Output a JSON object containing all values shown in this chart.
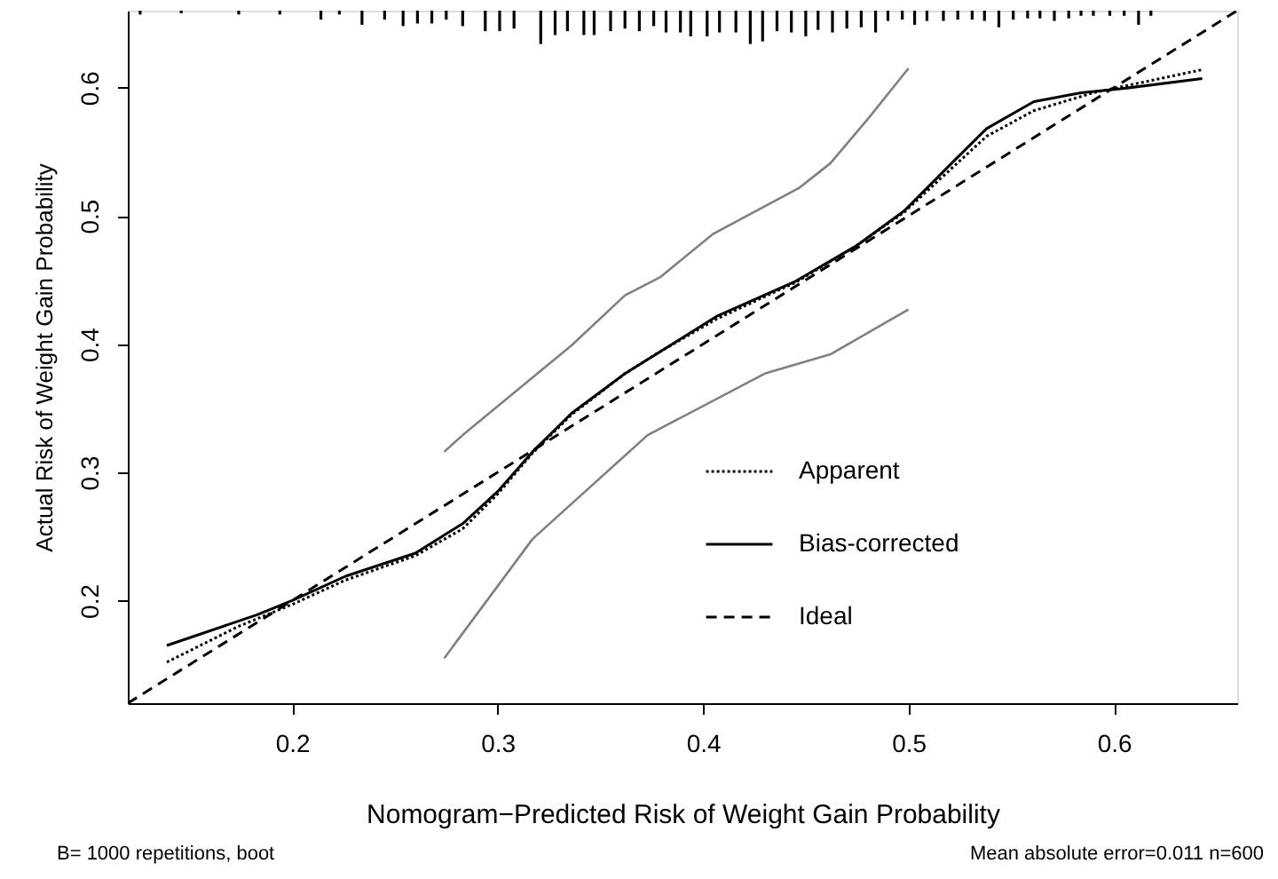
{
  "chart_data": {
    "type": "line",
    "xlabel": "Nomogram−Predicted Risk of Weight Gain Probability",
    "ylabel": "Actual Risk of Weight Gain Probability",
    "xlim": [
      0.12,
      0.66
    ],
    "ylim": [
      0.12,
      0.66
    ],
    "xticks": [
      0.2,
      0.3,
      0.4,
      0.5,
      0.6
    ],
    "yticks": [
      0.2,
      0.3,
      0.4,
      0.5,
      0.6
    ],
    "legend": "bottom right",
    "annotations": [
      "B= 1000 repetitions, boot",
      "Mean absolute error=0.011 n=600"
    ],
    "series": [
      {
        "name": "Apparent",
        "color": "#000000",
        "line_style": "dotted",
        "x": [
          0.139,
          0.174,
          0.2,
          0.226,
          0.26,
          0.283,
          0.3,
          0.317,
          0.336,
          0.362,
          0.379,
          0.407,
          0.445,
          0.475,
          0.498,
          0.521,
          0.538,
          0.561,
          0.59,
          0.643
        ],
        "values": [
          0.152,
          0.18,
          0.197,
          0.216,
          0.235,
          0.256,
          0.283,
          0.315,
          0.345,
          0.377,
          0.394,
          0.42,
          0.448,
          0.477,
          0.503,
          0.537,
          0.562,
          0.582,
          0.596,
          0.614
        ]
      },
      {
        "name": "Bias-corrected",
        "color": "#000000",
        "line_style": "solid",
        "x": [
          0.139,
          0.183,
          0.2,
          0.226,
          0.26,
          0.283,
          0.3,
          0.317,
          0.336,
          0.362,
          0.379,
          0.407,
          0.445,
          0.475,
          0.498,
          0.521,
          0.538,
          0.561,
          0.584,
          0.603,
          0.643
        ],
        "values": [
          0.165,
          0.189,
          0.2,
          0.219,
          0.237,
          0.26,
          0.285,
          0.316,
          0.346,
          0.377,
          0.394,
          0.422,
          0.449,
          0.477,
          0.504,
          0.541,
          0.568,
          0.589,
          0.596,
          0.599,
          0.607
        ]
      },
      {
        "name": "Ideal",
        "color": "#000000",
        "line_style": "dashed",
        "x": [
          0.12,
          0.66
        ],
        "values": [
          0.12,
          0.66
        ]
      },
      {
        "color": "#808080",
        "line_style": "solid",
        "x": [
          0.274,
          0.283,
          0.336,
          0.362,
          0.379,
          0.405,
          0.447,
          0.462,
          0.481,
          0.5
        ],
        "values": [
          0.316,
          0.329,
          0.399,
          0.438,
          0.452,
          0.486,
          0.522,
          0.541,
          0.577,
          0.615
        ]
      },
      {
        "color": "#808080",
        "line_style": "solid",
        "x": [
          0.274,
          0.317,
          0.373,
          0.43,
          0.462,
          0.5
        ],
        "values": [
          0.155,
          0.248,
          0.329,
          0.377,
          0.392,
          0.427
        ]
      },
      {
        "type": "bar",
        "color": "#000000",
        "base": [
          0.66,
          0.66,
          0.66,
          0.66,
          0.66,
          0.66,
          0.66,
          0.66,
          0.66,
          0.66,
          0.66,
          0.66,
          0.66,
          0.66,
          0.66,
          0.66,
          0.66,
          0.66,
          0.66,
          0.66,
          0.66,
          0.66,
          0.66,
          0.66,
          0.66,
          0.66,
          0.66,
          0.66,
          0.66,
          0.66,
          0.66,
          0.66,
          0.66,
          0.66,
          0.66,
          0.66,
          0.66,
          0.66,
          0.66,
          0.66,
          0.66,
          0.66,
          0.66,
          0.66,
          0.66,
          0.66,
          0.66,
          0.66,
          0.66,
          0.66,
          0.66,
          0.66,
          0.66,
          0.66,
          0.66,
          0.66,
          0.66,
          0.66,
          0.66,
          0.66,
          0.66
        ],
        "x": [
          0.126,
          0.146,
          0.174,
          0.194,
          0.214,
          0.223,
          0.234,
          0.245,
          0.254,
          0.261,
          0.268,
          0.275,
          0.283,
          0.294,
          0.301,
          0.308,
          0.321,
          0.328,
          0.334,
          0.342,
          0.347,
          0.355,
          0.362,
          0.369,
          0.376,
          0.382,
          0.389,
          0.394,
          0.402,
          0.408,
          0.416,
          0.423,
          0.429,
          0.436,
          0.443,
          0.45,
          0.456,
          0.463,
          0.47,
          0.477,
          0.484,
          0.49,
          0.497,
          0.503,
          0.509,
          0.517,
          0.524,
          0.531,
          0.537,
          0.544,
          0.551,
          0.558,
          0.564,
          0.571,
          0.578,
          0.584,
          0.59,
          0.598,
          0.605,
          0.612,
          0.618
        ],
        "values": [
          -0.003,
          -0.002,
          -0.003,
          -0.003,
          -0.007,
          -0.003,
          -0.011,
          -0.007,
          -0.012,
          -0.01,
          -0.01,
          -0.007,
          -0.012,
          -0.016,
          -0.016,
          -0.014,
          -0.026,
          -0.019,
          -0.016,
          -0.019,
          -0.019,
          -0.016,
          -0.014,
          -0.016,
          -0.012,
          -0.017,
          -0.017,
          -0.02,
          -0.02,
          -0.017,
          -0.017,
          -0.026,
          -0.024,
          -0.016,
          -0.017,
          -0.02,
          -0.015,
          -0.017,
          -0.014,
          -0.013,
          -0.017,
          -0.008,
          -0.007,
          -0.011,
          -0.008,
          -0.008,
          -0.007,
          -0.007,
          -0.008,
          -0.013,
          -0.007,
          -0.006,
          -0.006,
          -0.008,
          -0.006,
          -0.004,
          -0.004,
          -0.004,
          -0.004,
          -0.011,
          -0.004
        ]
      }
    ]
  }
}
